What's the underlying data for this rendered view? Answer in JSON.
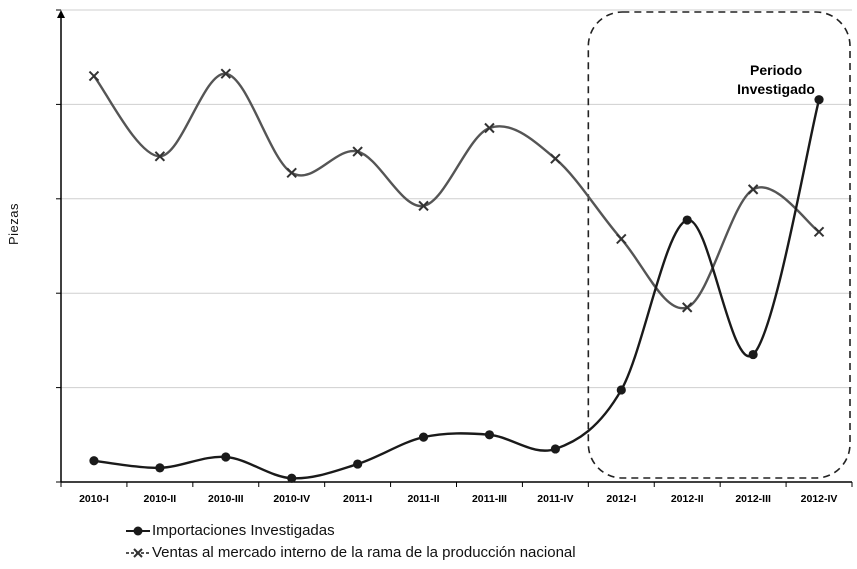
{
  "chart_data": {
    "type": "line",
    "title": "",
    "xlabel": "",
    "ylabel": "Piezas",
    "categories": [
      "2010-I",
      "2010-II",
      "2010-III",
      "2010-IV",
      "2011-I",
      "2011-II",
      "2011-III",
      "2011-IV",
      "2012-I",
      "2012-II",
      "2012-III",
      "2012-IV"
    ],
    "ylim": [
      0,
      100
    ],
    "grid": true,
    "series": [
      {
        "name": "Importaciones Investigadas",
        "marker": "circle",
        "color": "#1a1a1a",
        "values": [
          4.5,
          3.0,
          5.3,
          0.8,
          3.8,
          9.5,
          10.0,
          7.0,
          19.5,
          55.5,
          27.0,
          81.0
        ]
      },
      {
        "name": "Ventas al mercado interno de la rama de la producción nacional",
        "marker": "x",
        "color": "#555555",
        "values": [
          86.0,
          69.0,
          86.5,
          65.5,
          70.0,
          58.5,
          75.0,
          68.5,
          51.5,
          37.0,
          62.0,
          53.0
        ]
      }
    ],
    "annotation": {
      "text_line1": "Periodo",
      "text_line2": "Investigado",
      "start_category": "2012-I",
      "end_category": "2012-IV"
    }
  }
}
